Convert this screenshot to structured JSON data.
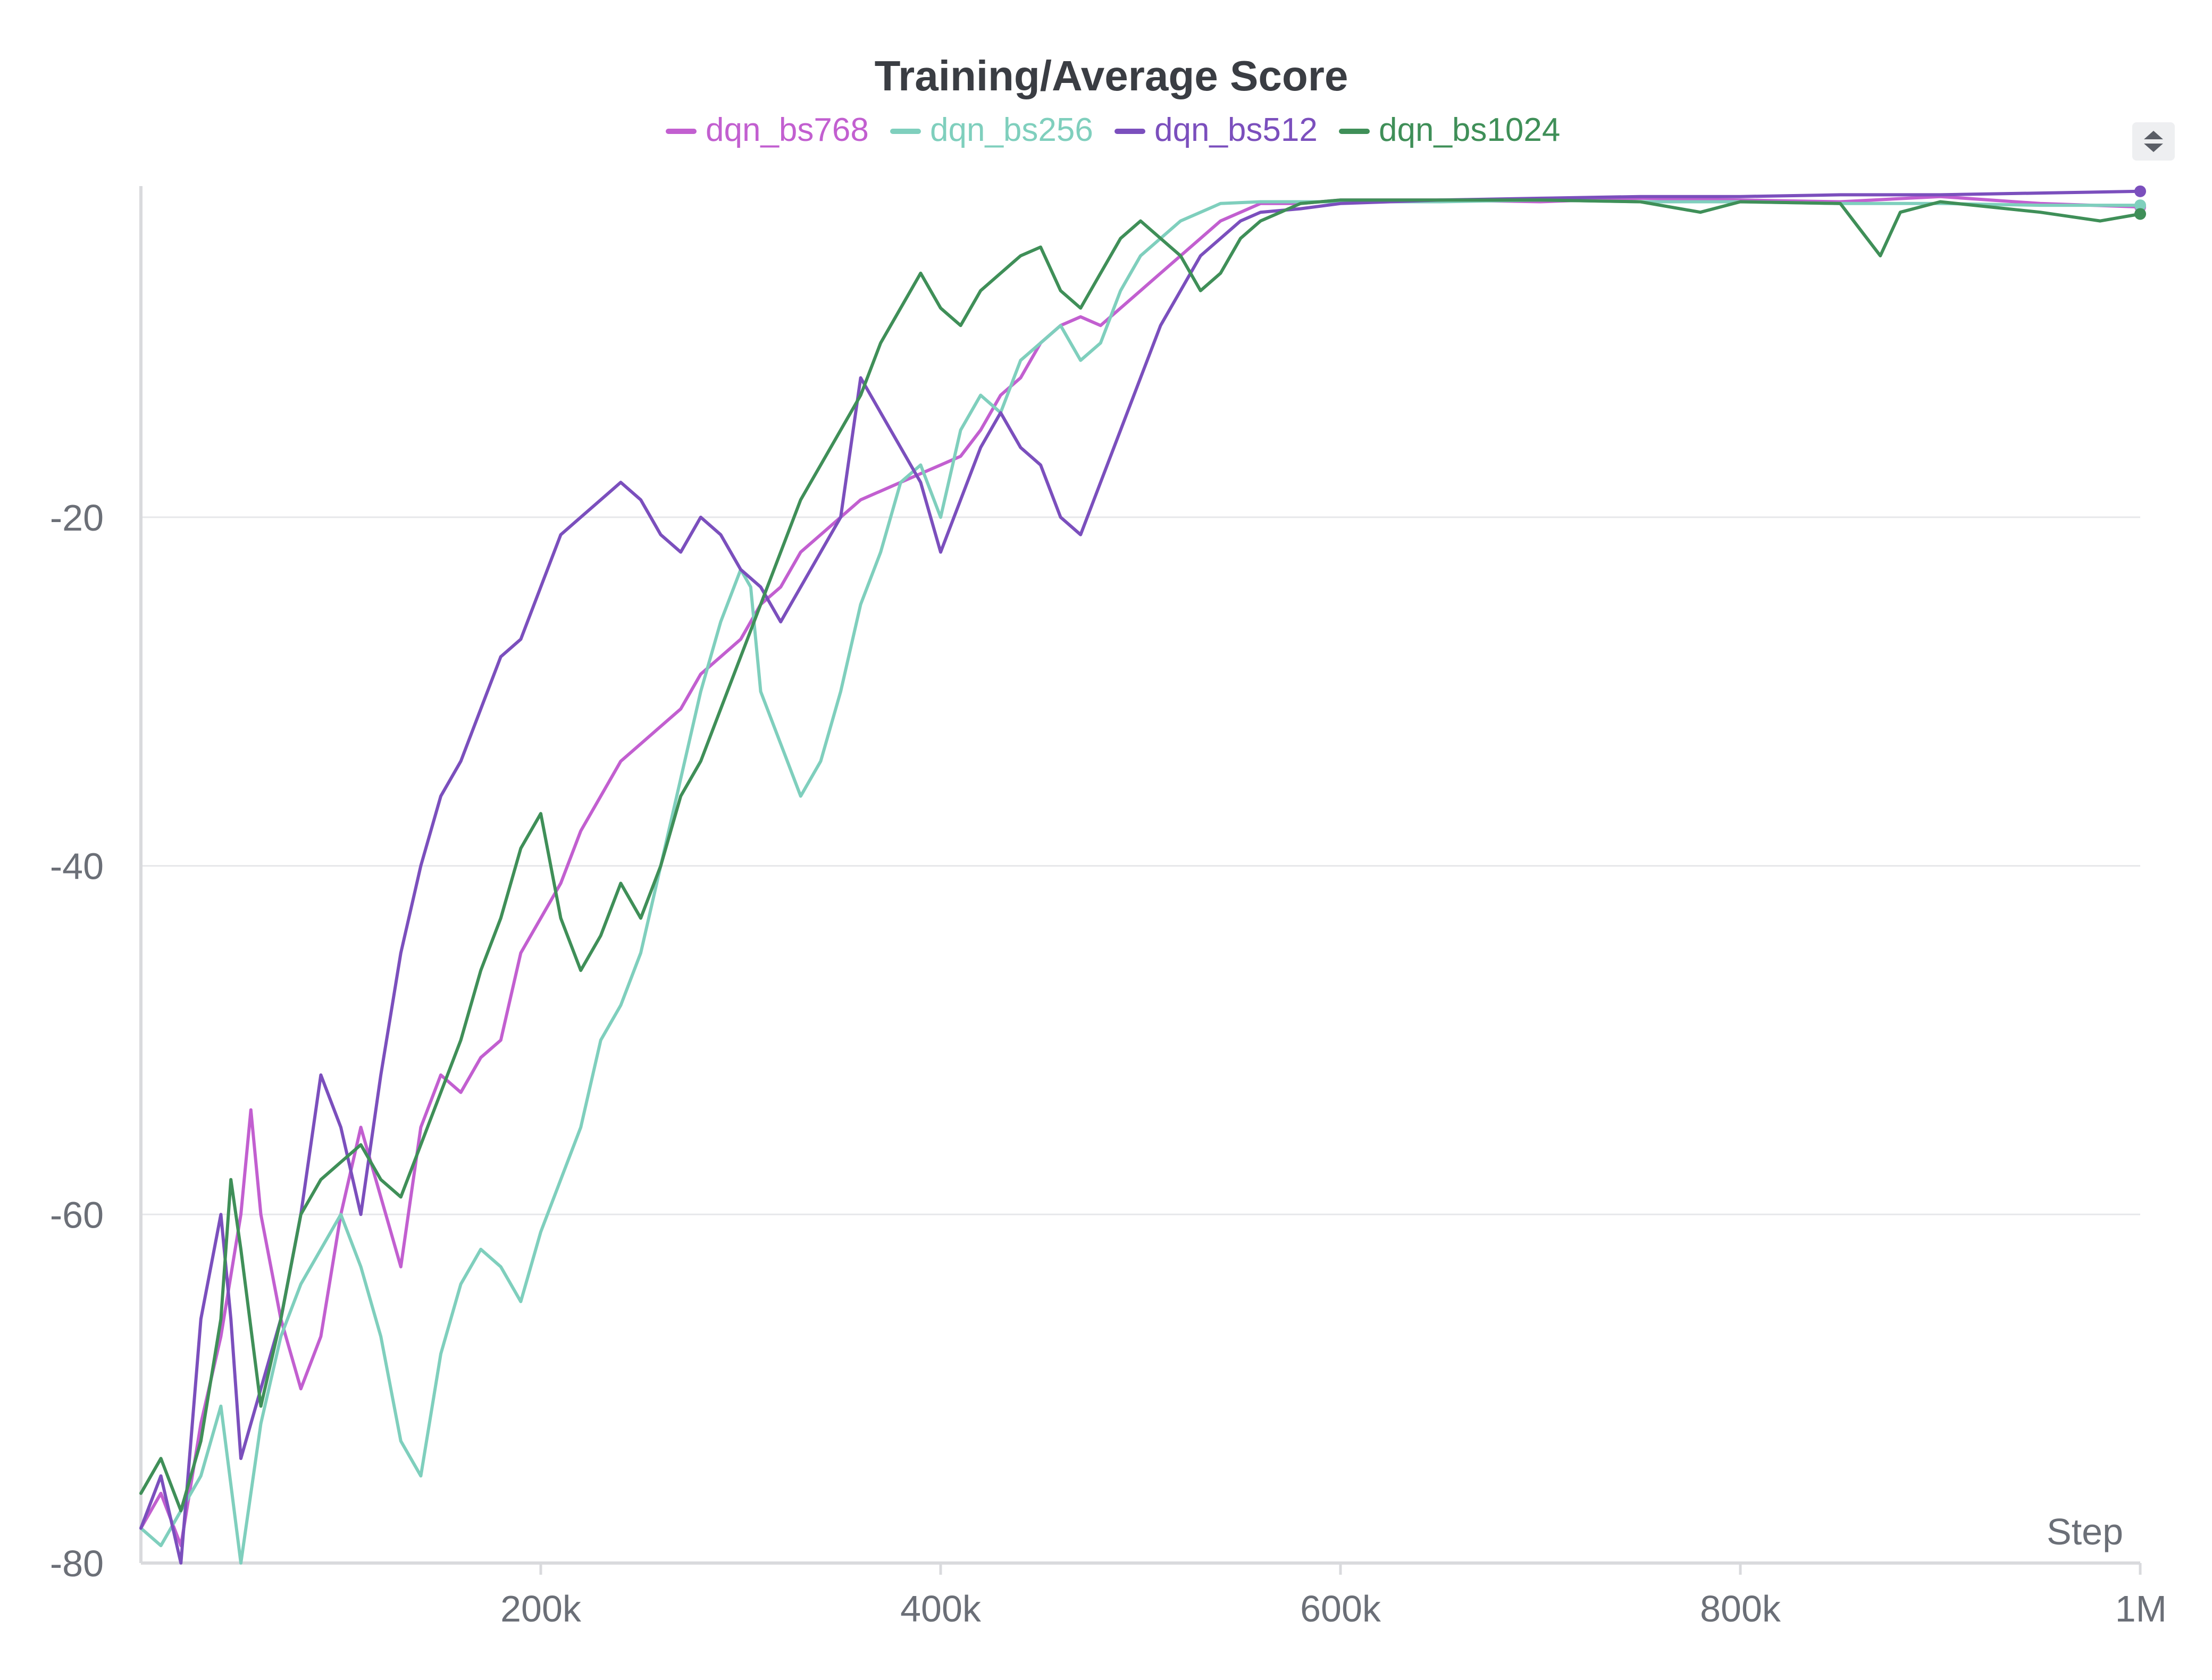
{
  "chart_data": {
    "type": "line",
    "title": "Training/Average Score",
    "xlabel": "Step",
    "ylabel": "",
    "xlim": [
      0,
      1000000
    ],
    "ylim": [
      -80,
      -1
    ],
    "x_ticks": [
      200000,
      400000,
      600000,
      800000,
      1000000
    ],
    "x_tick_labels": [
      "200k",
      "400k",
      "600k",
      "800k",
      "1M"
    ],
    "y_ticks": [
      -80,
      -60,
      -40,
      -20
    ],
    "y_tick_labels": [
      "-80",
      "-60",
      "-40",
      "-20"
    ],
    "grid": "horizontal",
    "legend_position": "top-center",
    "series": [
      {
        "name": "dqn_bs768",
        "color": "#c25fd0",
        "points": [
          [
            0,
            -78
          ],
          [
            10000,
            -76
          ],
          [
            20000,
            -79
          ],
          [
            30000,
            -72
          ],
          [
            40000,
            -67
          ],
          [
            50000,
            -60
          ],
          [
            55000,
            -54
          ],
          [
            60000,
            -60
          ],
          [
            70000,
            -66
          ],
          [
            80000,
            -70
          ],
          [
            90000,
            -67
          ],
          [
            100000,
            -60
          ],
          [
            110000,
            -55
          ],
          [
            120000,
            -59
          ],
          [
            130000,
            -63
          ],
          [
            140000,
            -55
          ],
          [
            150000,
            -52
          ],
          [
            160000,
            -53
          ],
          [
            170000,
            -51
          ],
          [
            180000,
            -50
          ],
          [
            190000,
            -45
          ],
          [
            200000,
            -43
          ],
          [
            210000,
            -41
          ],
          [
            220000,
            -38
          ],
          [
            230000,
            -36
          ],
          [
            240000,
            -34
          ],
          [
            250000,
            -33
          ],
          [
            260000,
            -32
          ],
          [
            270000,
            -31
          ],
          [
            280000,
            -29
          ],
          [
            290000,
            -28
          ],
          [
            300000,
            -27
          ],
          [
            310000,
            -25
          ],
          [
            320000,
            -24
          ],
          [
            330000,
            -22
          ],
          [
            340000,
            -21
          ],
          [
            350000,
            -20
          ],
          [
            360000,
            -19
          ],
          [
            370000,
            -18.5
          ],
          [
            380000,
            -18
          ],
          [
            390000,
            -17.5
          ],
          [
            400000,
            -17
          ],
          [
            410000,
            -16.5
          ],
          [
            420000,
            -15
          ],
          [
            430000,
            -13
          ],
          [
            440000,
            -12
          ],
          [
            450000,
            -10
          ],
          [
            460000,
            -9
          ],
          [
            470000,
            -8.5
          ],
          [
            480000,
            -9
          ],
          [
            490000,
            -8
          ],
          [
            500000,
            -7
          ],
          [
            510000,
            -6
          ],
          [
            520000,
            -5
          ],
          [
            530000,
            -4
          ],
          [
            540000,
            -3
          ],
          [
            550000,
            -2.5
          ],
          [
            560000,
            -2
          ],
          [
            580000,
            -2
          ],
          [
            600000,
            -1.8
          ],
          [
            650000,
            -1.8
          ],
          [
            700000,
            -1.9
          ],
          [
            750000,
            -1.7
          ],
          [
            800000,
            -1.8
          ],
          [
            850000,
            -1.9
          ],
          [
            900000,
            -1.6
          ],
          [
            950000,
            -2.0
          ],
          [
            1000000,
            -2.2
          ]
        ]
      },
      {
        "name": "dqn_bs256",
        "color": "#7fcfbd",
        "points": [
          [
            0,
            -78
          ],
          [
            10000,
            -79
          ],
          [
            20000,
            -77
          ],
          [
            30000,
            -75
          ],
          [
            40000,
            -71
          ],
          [
            50000,
            -80
          ],
          [
            60000,
            -72
          ],
          [
            70000,
            -67
          ],
          [
            80000,
            -64
          ],
          [
            90000,
            -62
          ],
          [
            100000,
            -60
          ],
          [
            110000,
            -63
          ],
          [
            120000,
            -67
          ],
          [
            130000,
            -73
          ],
          [
            140000,
            -75
          ],
          [
            150000,
            -68
          ],
          [
            160000,
            -64
          ],
          [
            170000,
            -62
          ],
          [
            180000,
            -63
          ],
          [
            190000,
            -65
          ],
          [
            200000,
            -61
          ],
          [
            210000,
            -58
          ],
          [
            220000,
            -55
          ],
          [
            230000,
            -50
          ],
          [
            240000,
            -48
          ],
          [
            250000,
            -45
          ],
          [
            260000,
            -40
          ],
          [
            270000,
            -35
          ],
          [
            280000,
            -30
          ],
          [
            290000,
            -26
          ],
          [
            300000,
            -23
          ],
          [
            305000,
            -24
          ],
          [
            310000,
            -30
          ],
          [
            320000,
            -33
          ],
          [
            330000,
            -36
          ],
          [
            340000,
            -34
          ],
          [
            350000,
            -30
          ],
          [
            360000,
            -25
          ],
          [
            370000,
            -22
          ],
          [
            380000,
            -18
          ],
          [
            390000,
            -17
          ],
          [
            400000,
            -20
          ],
          [
            410000,
            -15
          ],
          [
            420000,
            -13
          ],
          [
            430000,
            -14
          ],
          [
            440000,
            -11
          ],
          [
            450000,
            -10
          ],
          [
            460000,
            -9
          ],
          [
            470000,
            -11
          ],
          [
            480000,
            -10
          ],
          [
            490000,
            -7
          ],
          [
            500000,
            -5
          ],
          [
            510000,
            -4
          ],
          [
            520000,
            -3
          ],
          [
            530000,
            -2.5
          ],
          [
            540000,
            -2
          ],
          [
            560000,
            -1.9
          ],
          [
            600000,
            -1.9
          ],
          [
            650000,
            -1.9
          ],
          [
            700000,
            -1.8
          ],
          [
            750000,
            -1.9
          ],
          [
            800000,
            -1.9
          ],
          [
            850000,
            -2.0
          ],
          [
            900000,
            -2.0
          ],
          [
            950000,
            -2.1
          ],
          [
            1000000,
            -2.1
          ]
        ]
      },
      {
        "name": "dqn_bs512",
        "color": "#7b4fbd",
        "points": [
          [
            0,
            -78
          ],
          [
            10000,
            -75
          ],
          [
            20000,
            -80
          ],
          [
            30000,
            -66
          ],
          [
            40000,
            -60
          ],
          [
            45000,
            -66
          ],
          [
            50000,
            -74
          ],
          [
            60000,
            -70
          ],
          [
            70000,
            -66
          ],
          [
            80000,
            -60
          ],
          [
            90000,
            -52
          ],
          [
            100000,
            -55
          ],
          [
            110000,
            -60
          ],
          [
            120000,
            -52
          ],
          [
            130000,
            -45
          ],
          [
            140000,
            -40
          ],
          [
            150000,
            -36
          ],
          [
            160000,
            -34
          ],
          [
            170000,
            -31
          ],
          [
            180000,
            -28
          ],
          [
            190000,
            -27
          ],
          [
            200000,
            -24
          ],
          [
            210000,
            -21
          ],
          [
            220000,
            -20
          ],
          [
            230000,
            -19
          ],
          [
            240000,
            -18
          ],
          [
            250000,
            -19
          ],
          [
            260000,
            -21
          ],
          [
            270000,
            -22
          ],
          [
            280000,
            -20
          ],
          [
            290000,
            -21
          ],
          [
            300000,
            -23
          ],
          [
            310000,
            -24
          ],
          [
            320000,
            -26
          ],
          [
            330000,
            -24
          ],
          [
            340000,
            -22
          ],
          [
            350000,
            -20
          ],
          [
            355000,
            -16
          ],
          [
            360000,
            -12
          ],
          [
            370000,
            -14
          ],
          [
            380000,
            -16
          ],
          [
            390000,
            -18
          ],
          [
            400000,
            -22
          ],
          [
            410000,
            -19
          ],
          [
            420000,
            -16
          ],
          [
            430000,
            -14
          ],
          [
            440000,
            -16
          ],
          [
            450000,
            -17
          ],
          [
            460000,
            -20
          ],
          [
            470000,
            -21
          ],
          [
            480000,
            -18
          ],
          [
            490000,
            -15
          ],
          [
            500000,
            -12
          ],
          [
            510000,
            -9
          ],
          [
            520000,
            -7
          ],
          [
            530000,
            -5
          ],
          [
            540000,
            -4
          ],
          [
            550000,
            -3
          ],
          [
            560000,
            -2.5
          ],
          [
            580000,
            -2.3
          ],
          [
            600000,
            -2
          ],
          [
            650000,
            -1.8
          ],
          [
            700000,
            -1.7
          ],
          [
            750000,
            -1.6
          ],
          [
            800000,
            -1.6
          ],
          [
            850000,
            -1.5
          ],
          [
            900000,
            -1.5
          ],
          [
            950000,
            -1.4
          ],
          [
            1000000,
            -1.3
          ]
        ]
      },
      {
        "name": "dqn_bs1024",
        "color": "#3f8f58",
        "points": [
          [
            0,
            -76
          ],
          [
            10000,
            -74
          ],
          [
            20000,
            -77
          ],
          [
            30000,
            -73
          ],
          [
            40000,
            -66
          ],
          [
            45000,
            -58
          ],
          [
            50000,
            -62
          ],
          [
            60000,
            -71
          ],
          [
            70000,
            -66
          ],
          [
            80000,
            -60
          ],
          [
            90000,
            -58
          ],
          [
            100000,
            -57
          ],
          [
            110000,
            -56
          ],
          [
            120000,
            -58
          ],
          [
            130000,
            -59
          ],
          [
            140000,
            -56
          ],
          [
            150000,
            -53
          ],
          [
            160000,
            -50
          ],
          [
            170000,
            -46
          ],
          [
            180000,
            -43
          ],
          [
            190000,
            -39
          ],
          [
            200000,
            -37
          ],
          [
            210000,
            -43
          ],
          [
            220000,
            -46
          ],
          [
            230000,
            -44
          ],
          [
            240000,
            -41
          ],
          [
            250000,
            -43
          ],
          [
            260000,
            -40
          ],
          [
            270000,
            -36
          ],
          [
            280000,
            -34
          ],
          [
            290000,
            -31
          ],
          [
            300000,
            -28
          ],
          [
            310000,
            -25
          ],
          [
            320000,
            -22
          ],
          [
            330000,
            -19
          ],
          [
            340000,
            -17
          ],
          [
            350000,
            -15
          ],
          [
            360000,
            -13
          ],
          [
            370000,
            -10
          ],
          [
            380000,
            -8
          ],
          [
            390000,
            -6
          ],
          [
            400000,
            -8
          ],
          [
            410000,
            -9
          ],
          [
            420000,
            -7
          ],
          [
            430000,
            -6
          ],
          [
            440000,
            -5
          ],
          [
            450000,
            -4.5
          ],
          [
            460000,
            -7
          ],
          [
            470000,
            -8
          ],
          [
            480000,
            -6
          ],
          [
            490000,
            -4
          ],
          [
            500000,
            -3
          ],
          [
            510000,
            -4
          ],
          [
            520000,
            -5
          ],
          [
            530000,
            -7
          ],
          [
            540000,
            -6
          ],
          [
            550000,
            -4
          ],
          [
            560000,
            -3
          ],
          [
            570000,
            -2.5
          ],
          [
            580000,
            -2
          ],
          [
            600000,
            -1.8
          ],
          [
            650000,
            -1.8
          ],
          [
            700000,
            -1.8
          ],
          [
            750000,
            -1.9
          ],
          [
            780000,
            -2.5
          ],
          [
            800000,
            -1.9
          ],
          [
            850000,
            -2.0
          ],
          [
            860000,
            -3.5
          ],
          [
            870000,
            -5
          ],
          [
            880000,
            -2.5
          ],
          [
            900000,
            -1.9
          ],
          [
            950000,
            -2.5
          ],
          [
            980000,
            -3
          ],
          [
            1000000,
            -2.6
          ]
        ]
      }
    ]
  },
  "controls": {
    "legend_scroll_icon": "sort-arrows-icon"
  }
}
